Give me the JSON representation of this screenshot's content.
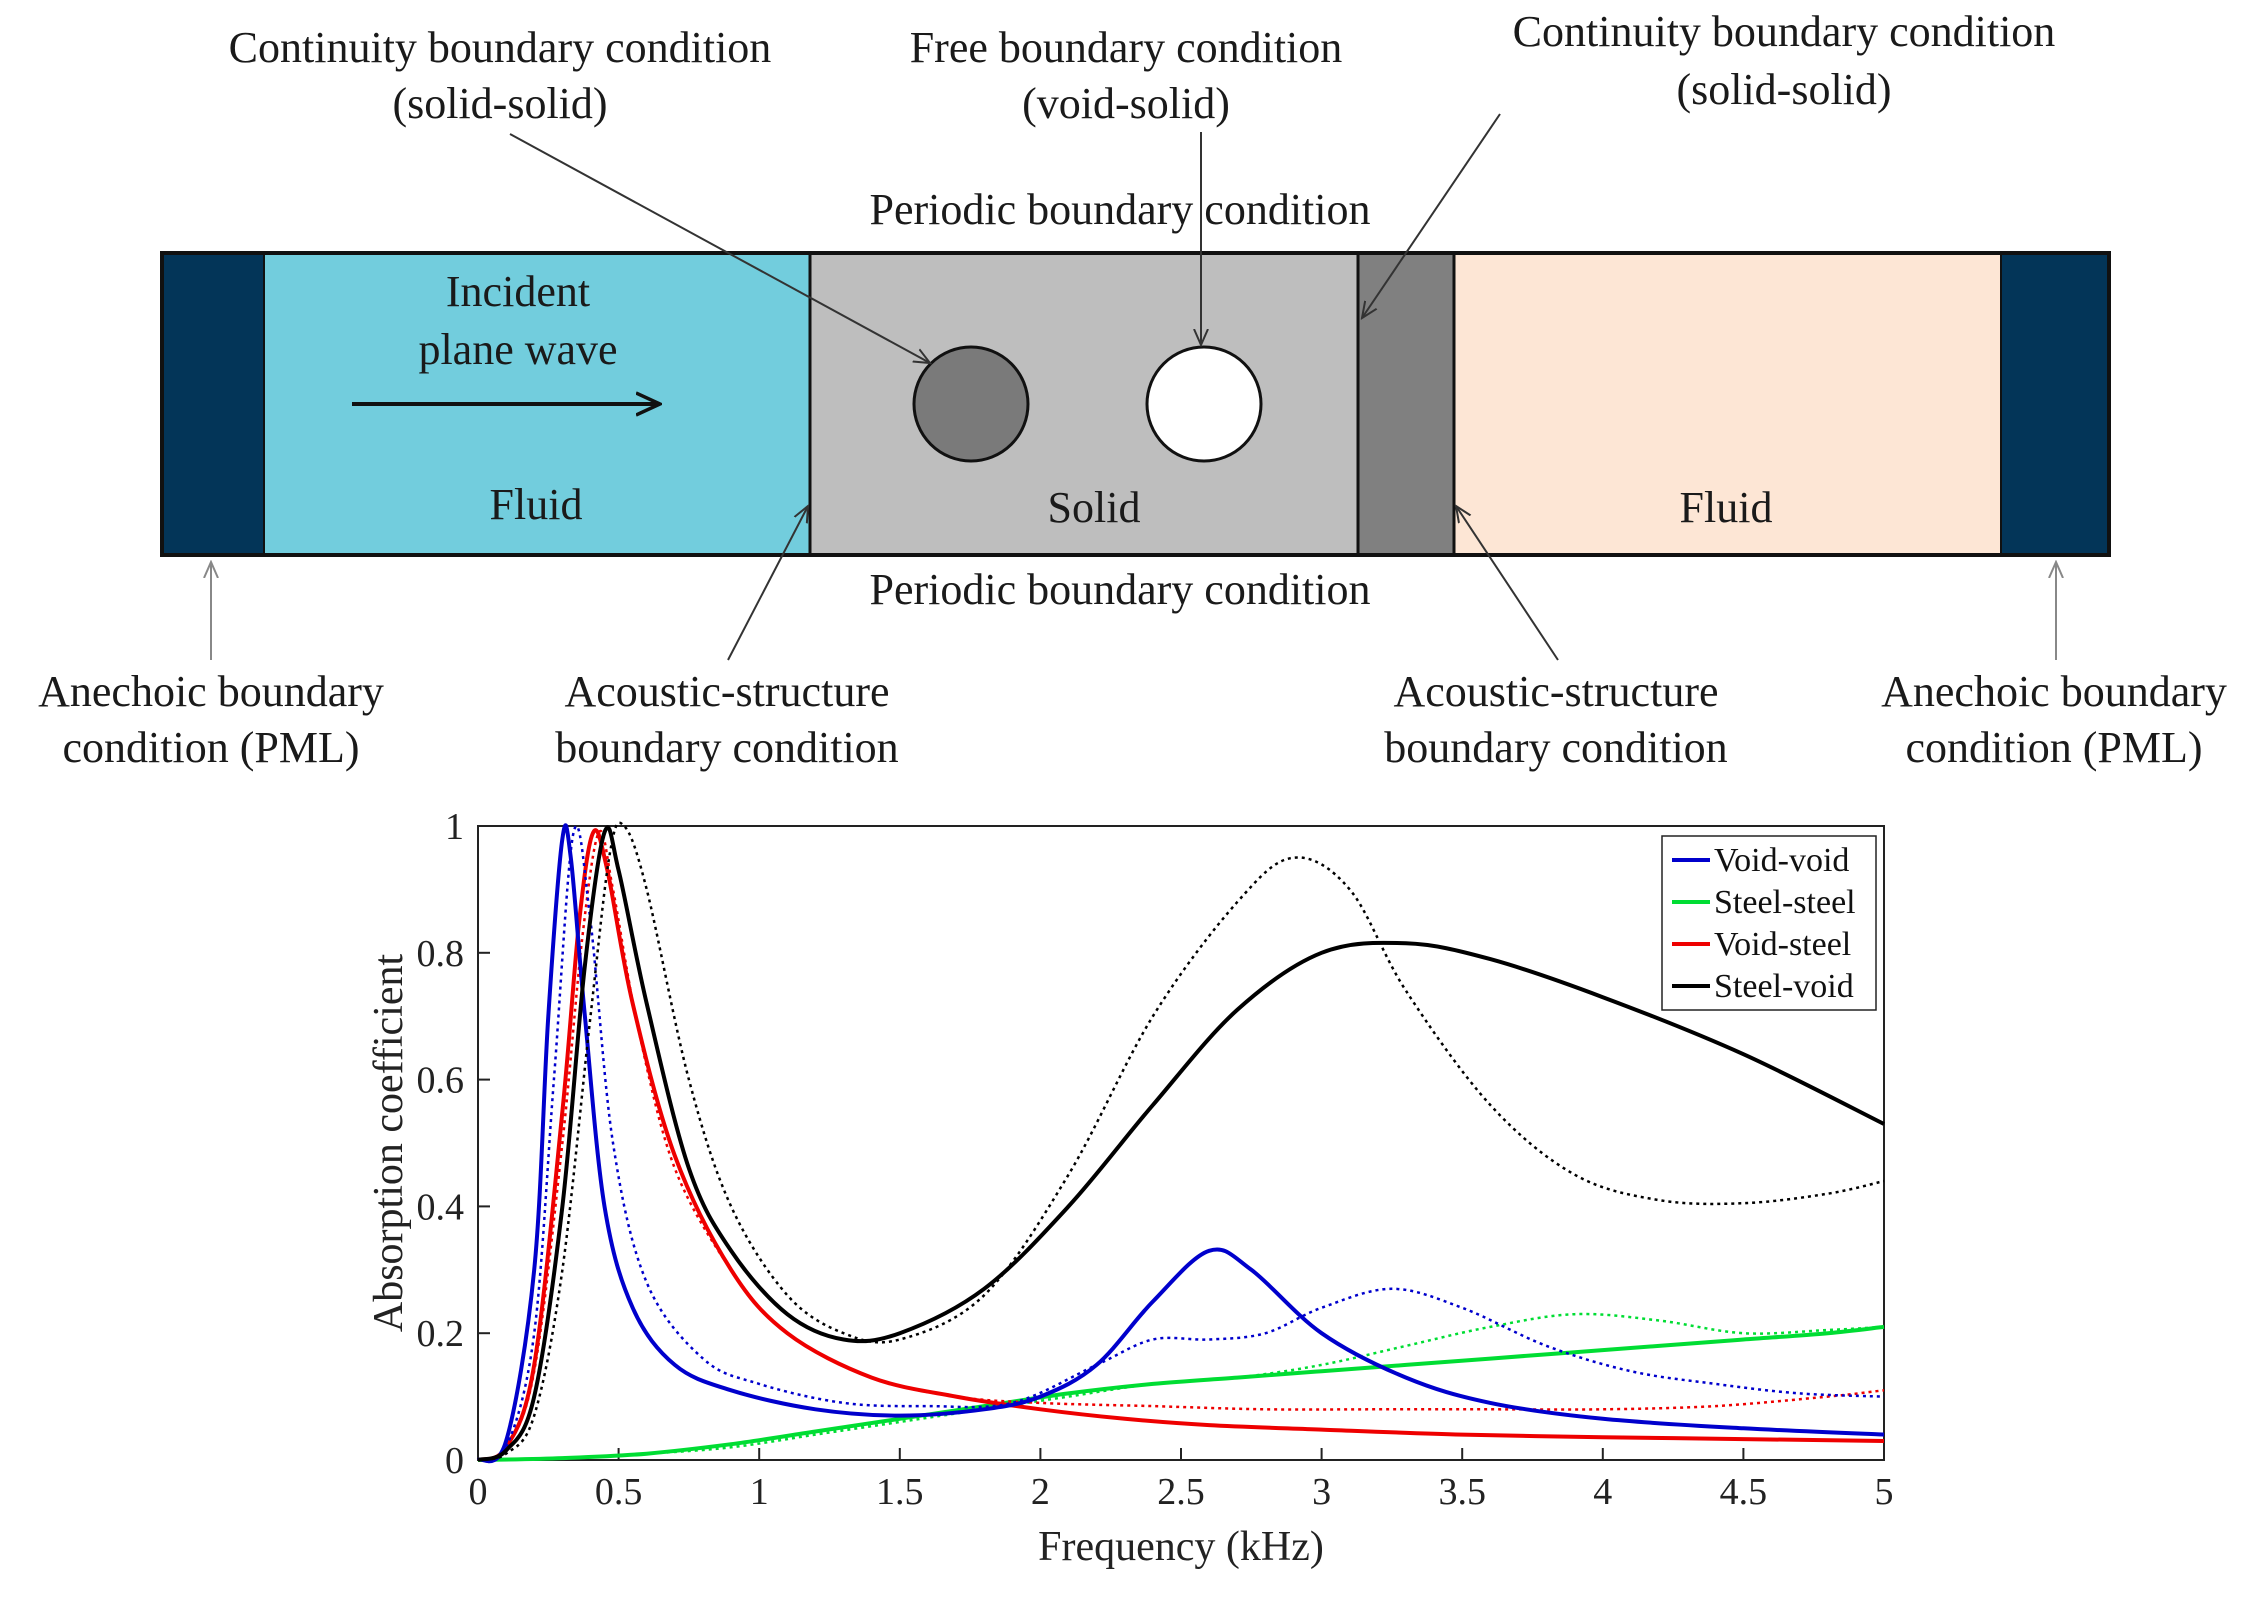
{
  "diagram": {
    "colors": {
      "pml": "#033558",
      "fluid_left": "#72CDDD",
      "solid": "#BEBEBE",
      "solid_dark": "#808080",
      "fluid_right": "#FDE6D5",
      "inclusion_steel": "#7A7A7A",
      "inclusion_void": "#FFFFFF"
    },
    "labels": {
      "continuity_left_line1": "Continuity boundary condition",
      "continuity_left_line2": "(solid-solid)",
      "free_line1": "Free boundary condition",
      "free_line2": "(void-solid)",
      "continuity_right_line1": "Continuity boundary condition",
      "continuity_right_line2": "(solid-solid)",
      "periodic_top": "Periodic boundary condition",
      "periodic_bottom": "Periodic boundary condition",
      "incident_line1": "Incident",
      "incident_line2": "plane wave",
      "fluid_left": "Fluid",
      "solid": "Solid",
      "fluid_right": "Fluid",
      "anechoic_left_line1": "Anechoic boundary",
      "anechoic_left_line2": "condition (PML)",
      "acoustic_left_line1": "Acoustic-structure",
      "acoustic_left_line2": "boundary condition",
      "acoustic_right_line1": "Acoustic-structure",
      "acoustic_right_line2": "boundary condition",
      "anechoic_right_line1": "Anechoic boundary",
      "anechoic_right_line2": "condition (PML)"
    }
  },
  "chart_data": {
    "type": "line",
    "xlabel": "Frequency (kHz)",
    "ylabel": "Absorption coefficient",
    "xlim": [
      0,
      5
    ],
    "ylim": [
      0,
      1
    ],
    "xticks": [
      0,
      0.5,
      1,
      1.5,
      2,
      2.5,
      3,
      3.5,
      4,
      4.5,
      5
    ],
    "xtick_labels": [
      "0",
      "0.5",
      "1",
      "1.5",
      "2",
      "2.5",
      "3",
      "3.5",
      "4",
      "4.5",
      "5"
    ],
    "yticks": [
      0,
      0.2,
      0.4,
      0.6,
      0.8,
      1
    ],
    "ytick_labels": [
      "0",
      "0.2",
      "0.4",
      "0.6",
      "0.8",
      "1"
    ],
    "legend_position": "top-right",
    "series": [
      {
        "name": "Void-void",
        "color": "#0000CC",
        "style": "solid",
        "x": [
          0,
          0.1,
          0.2,
          0.25,
          0.3,
          0.33,
          0.38,
          0.45,
          0.55,
          0.7,
          0.9,
          1.2,
          1.5,
          1.8,
          2.0,
          2.2,
          2.4,
          2.6,
          2.75,
          3.0,
          3.3,
          3.6,
          4.0,
          4.5,
          5.0
        ],
        "y": [
          0,
          0.03,
          0.3,
          0.7,
          0.98,
          0.95,
          0.7,
          0.4,
          0.24,
          0.15,
          0.11,
          0.08,
          0.07,
          0.08,
          0.1,
          0.15,
          0.25,
          0.33,
          0.3,
          0.2,
          0.13,
          0.09,
          0.065,
          0.05,
          0.04
        ]
      },
      {
        "name": "Void-void (dotted)",
        "color": "#0000CC",
        "style": "dotted",
        "x": [
          0,
          0.1,
          0.2,
          0.27,
          0.34,
          0.4,
          0.48,
          0.6,
          0.8,
          1.0,
          1.3,
          1.6,
          1.9,
          2.2,
          2.4,
          2.6,
          2.8,
          3.0,
          3.25,
          3.5,
          3.8,
          4.1,
          4.4,
          4.7,
          5.0
        ],
        "y": [
          0,
          0.02,
          0.2,
          0.6,
          0.99,
          0.85,
          0.5,
          0.28,
          0.16,
          0.12,
          0.09,
          0.085,
          0.09,
          0.15,
          0.19,
          0.19,
          0.2,
          0.24,
          0.27,
          0.24,
          0.18,
          0.14,
          0.12,
          0.105,
          0.1
        ]
      },
      {
        "name": "Steel-steel",
        "color": "#00DD33",
        "style": "solid",
        "x": [
          0,
          0.3,
          0.6,
          0.9,
          1.2,
          1.5,
          1.8,
          2.1,
          2.4,
          2.7,
          3.0,
          3.3,
          3.6,
          3.9,
          4.2,
          4.5,
          4.8,
          5.0
        ],
        "y": [
          0,
          0.003,
          0.01,
          0.025,
          0.045,
          0.065,
          0.085,
          0.105,
          0.12,
          0.13,
          0.14,
          0.15,
          0.16,
          0.17,
          0.18,
          0.19,
          0.2,
          0.21
        ]
      },
      {
        "name": "Steel-steel (dotted)",
        "color": "#00DD33",
        "style": "dotted",
        "x": [
          0,
          0.3,
          0.6,
          0.9,
          1.2,
          1.5,
          1.8,
          2.1,
          2.4,
          2.7,
          3.0,
          3.3,
          3.6,
          3.9,
          4.2,
          4.5,
          4.8,
          5.0
        ],
        "y": [
          0,
          0.003,
          0.01,
          0.02,
          0.04,
          0.06,
          0.08,
          0.1,
          0.12,
          0.13,
          0.15,
          0.18,
          0.21,
          0.23,
          0.22,
          0.2,
          0.205,
          0.21
        ]
      },
      {
        "name": "Void-steel",
        "color": "#EE0000",
        "style": "solid",
        "x": [
          0,
          0.1,
          0.2,
          0.3,
          0.36,
          0.41,
          0.46,
          0.55,
          0.7,
          0.9,
          1.1,
          1.4,
          1.7,
          2.0,
          2.3,
          2.6,
          3.0,
          3.5,
          4.0,
          4.5,
          5.0
        ],
        "y": [
          0,
          0.02,
          0.15,
          0.55,
          0.85,
          0.99,
          0.93,
          0.72,
          0.48,
          0.3,
          0.2,
          0.13,
          0.1,
          0.08,
          0.065,
          0.055,
          0.048,
          0.04,
          0.036,
          0.033,
          0.03
        ]
      },
      {
        "name": "Void-steel (dotted)",
        "color": "#EE0000",
        "style": "dotted",
        "x": [
          0,
          0.1,
          0.2,
          0.3,
          0.37,
          0.43,
          0.48,
          0.57,
          0.7,
          0.9,
          1.1,
          1.4,
          1.7,
          2.0,
          2.4,
          2.8,
          3.2,
          3.6,
          4.0,
          4.4,
          4.8,
          5.0
        ],
        "y": [
          0,
          0.02,
          0.14,
          0.5,
          0.82,
          0.99,
          0.9,
          0.68,
          0.46,
          0.3,
          0.2,
          0.13,
          0.1,
          0.09,
          0.085,
          0.08,
          0.08,
          0.08,
          0.08,
          0.085,
          0.1,
          0.11
        ]
      },
      {
        "name": "Steel-void",
        "color": "#000000",
        "style": "solid",
        "x": [
          0,
          0.1,
          0.2,
          0.3,
          0.38,
          0.45,
          0.5,
          0.6,
          0.75,
          0.9,
          1.1,
          1.3,
          1.5,
          1.8,
          2.1,
          2.4,
          2.7,
          3.0,
          3.3,
          3.6,
          4.0,
          4.5,
          5.0
        ],
        "y": [
          0,
          0.015,
          0.1,
          0.4,
          0.78,
          0.99,
          0.93,
          0.72,
          0.46,
          0.33,
          0.23,
          0.19,
          0.2,
          0.27,
          0.4,
          0.56,
          0.71,
          0.8,
          0.815,
          0.79,
          0.73,
          0.64,
          0.53
        ]
      },
      {
        "name": "Steel-void (dotted)",
        "color": "#000000",
        "style": "dotted",
        "x": [
          0,
          0.1,
          0.2,
          0.3,
          0.4,
          0.47,
          0.52,
          0.6,
          0.75,
          0.9,
          1.1,
          1.3,
          1.5,
          1.8,
          2.1,
          2.4,
          2.7,
          2.9,
          3.1,
          3.3,
          3.6,
          3.9,
          4.2,
          4.5,
          4.8,
          5.0
        ],
        "y": [
          0,
          0.01,
          0.07,
          0.3,
          0.7,
          0.96,
          1.0,
          0.9,
          0.6,
          0.4,
          0.26,
          0.2,
          0.19,
          0.26,
          0.45,
          0.7,
          0.88,
          0.95,
          0.9,
          0.74,
          0.56,
          0.45,
          0.41,
          0.405,
          0.42,
          0.44
        ]
      }
    ],
    "legend": [
      {
        "label": "Void-void",
        "color": "#0000CC"
      },
      {
        "label": "Steel-steel",
        "color": "#00DD33"
      },
      {
        "label": "Void-steel",
        "color": "#EE0000"
      },
      {
        "label": "Steel-void",
        "color": "#000000"
      }
    ]
  }
}
